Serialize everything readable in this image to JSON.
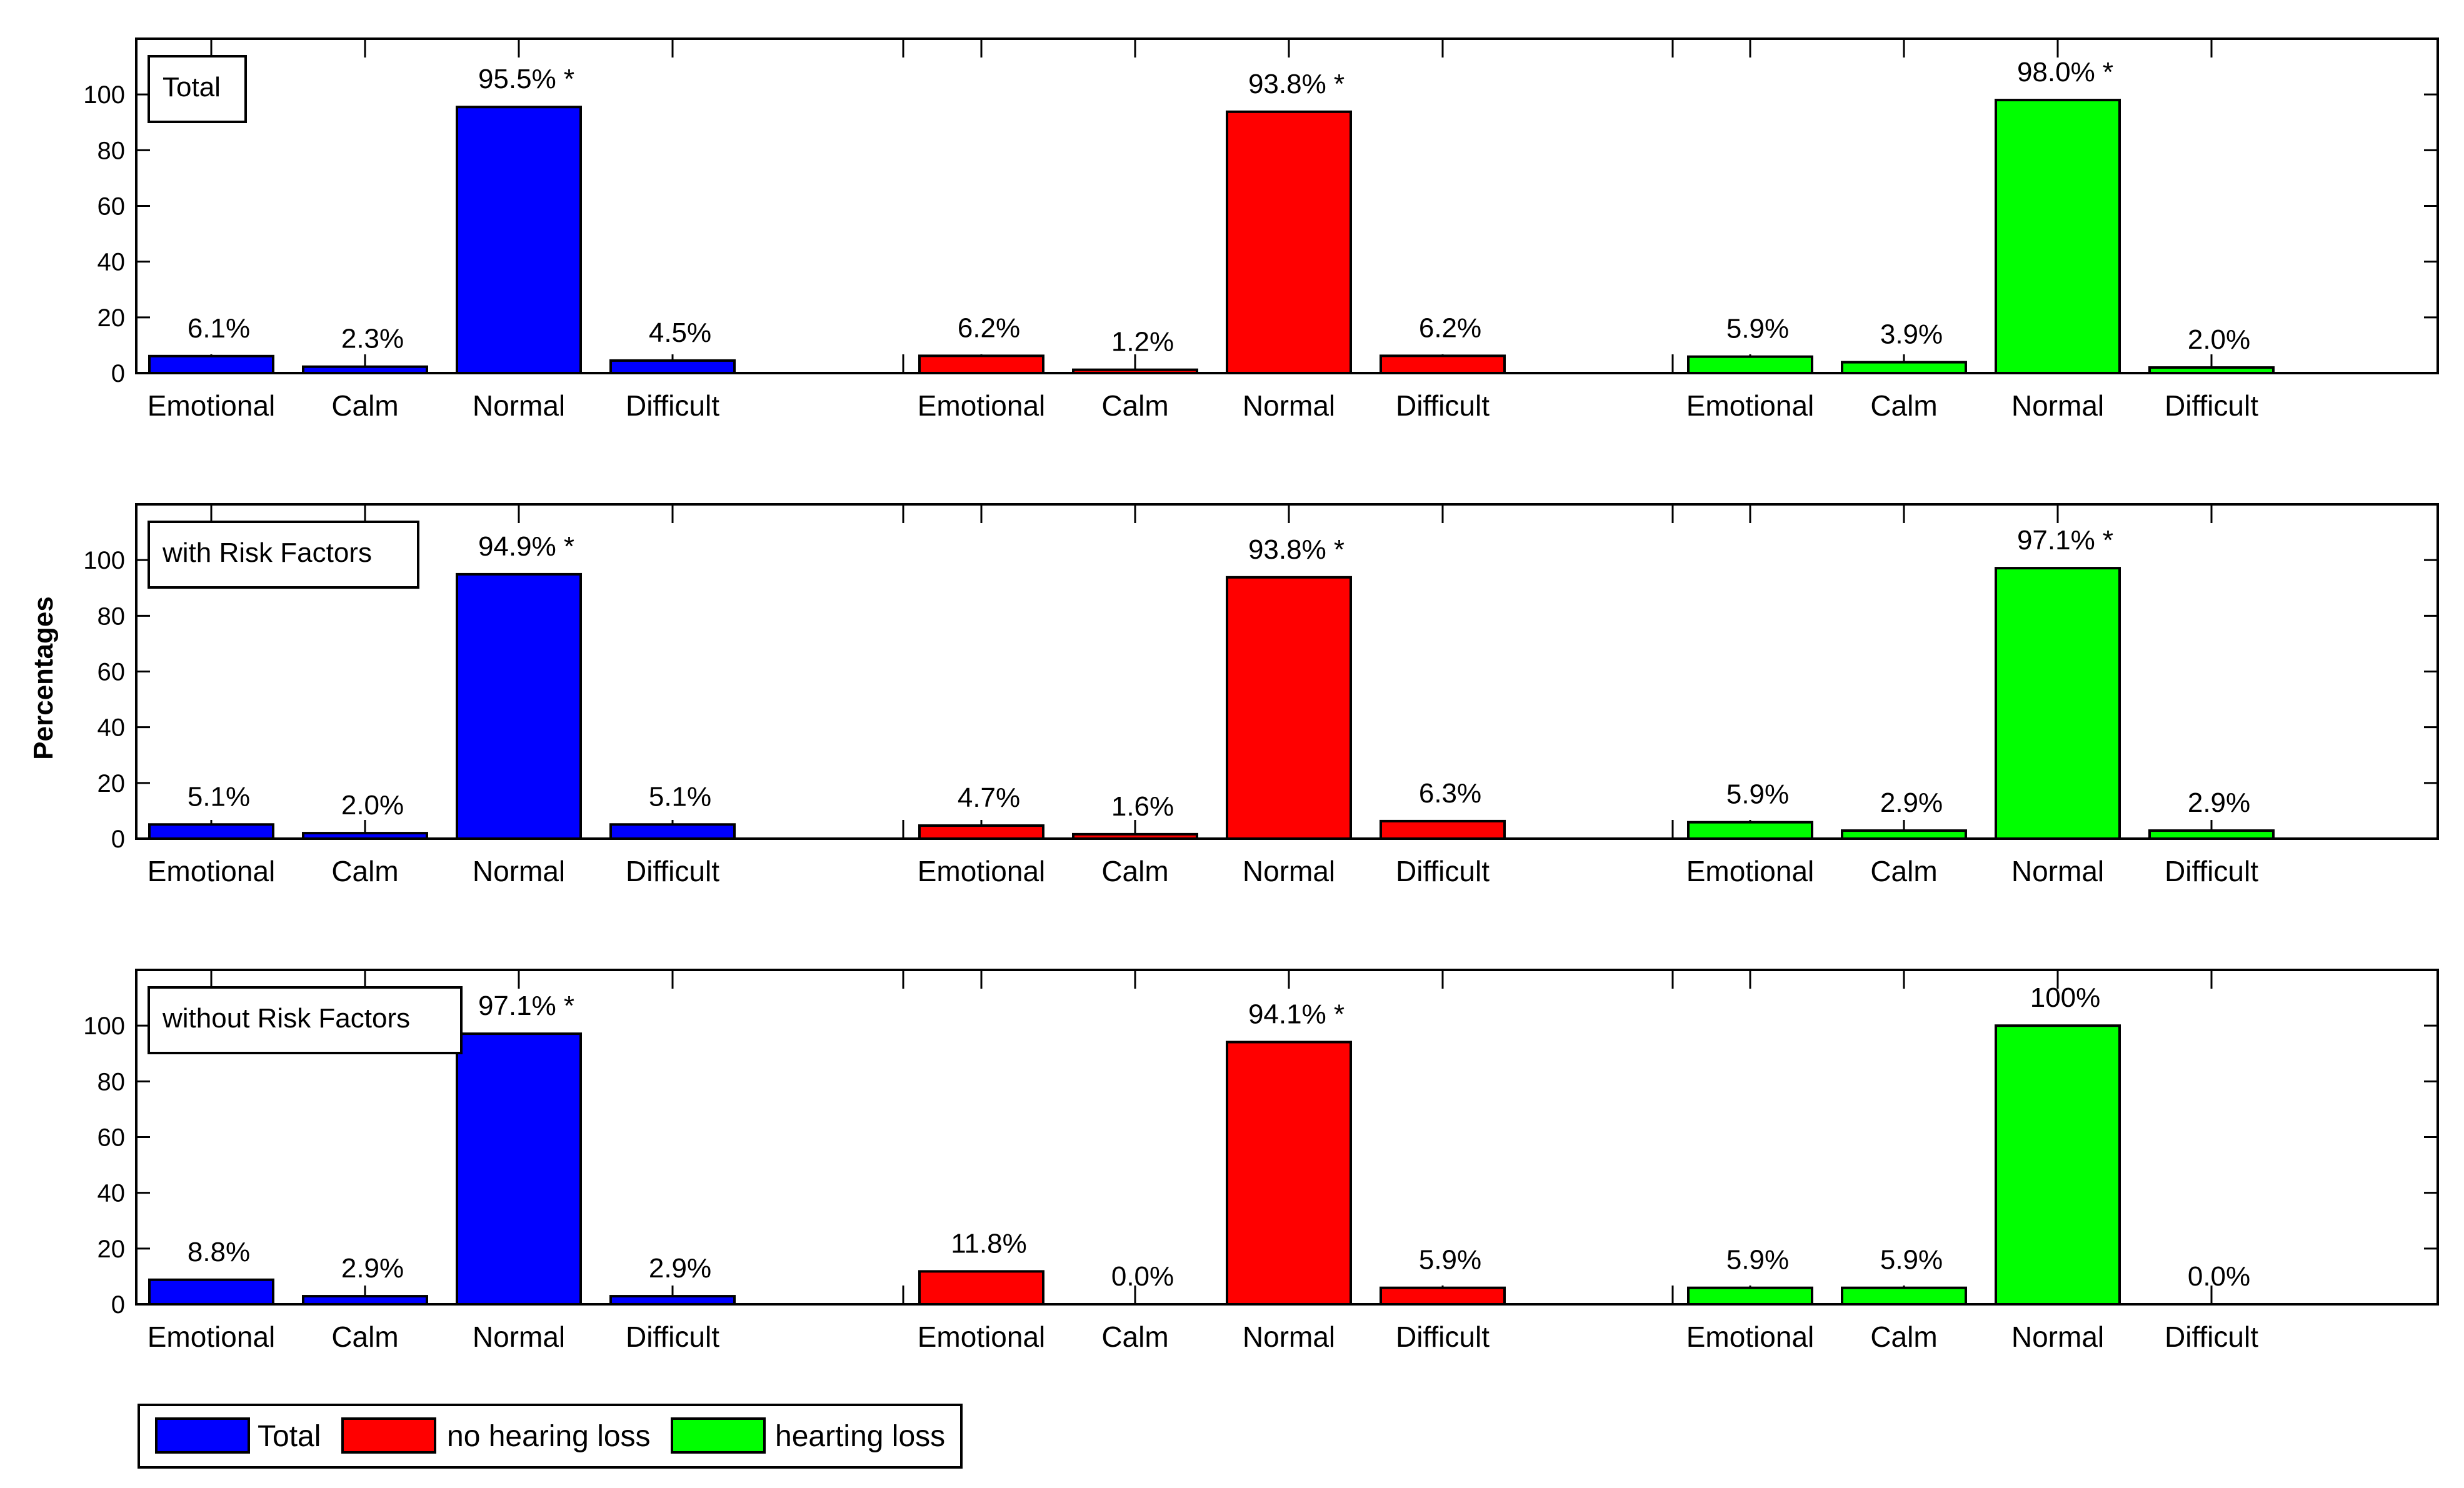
{
  "chart_data": {
    "type": "bar",
    "ylabel": "Percentages",
    "ylim": [
      0,
      120
    ],
    "yticks": [
      0,
      20,
      40,
      60,
      80,
      100
    ],
    "categories": [
      "Emotional",
      "Calm",
      "Normal",
      "Difficult"
    ],
    "groups": [
      {
        "name": "Total",
        "color": "#0000ff"
      },
      {
        "name": "no hearing loss",
        "color": "#ff0000"
      },
      {
        "name": "hearting loss",
        "color": "#00ff00"
      }
    ],
    "panels": [
      {
        "title": "Total",
        "series": [
          {
            "name": "Total",
            "values": [
              6.1,
              2.3,
              95.5,
              4.5
            ],
            "labels": [
              "6.1%",
              "2.3%",
              "95.5% *",
              "4.5%"
            ]
          },
          {
            "name": "no hearing loss",
            "values": [
              6.2,
              1.2,
              93.8,
              6.2
            ],
            "labels": [
              "6.2%",
              "1.2%",
              "93.8% *",
              "6.2%"
            ]
          },
          {
            "name": "hearting loss",
            "values": [
              5.9,
              3.9,
              98.0,
              2.0
            ],
            "labels": [
              "5.9%",
              "3.9%",
              "98.0% *",
              "2.0%"
            ]
          }
        ]
      },
      {
        "title": "with Risk Factors",
        "series": [
          {
            "name": "Total",
            "values": [
              5.1,
              2.0,
              94.9,
              5.1
            ],
            "labels": [
              "5.1%",
              "2.0%",
              "94.9% *",
              "5.1%"
            ]
          },
          {
            "name": "no hearing loss",
            "values": [
              4.7,
              1.6,
              93.8,
              6.3
            ],
            "labels": [
              "4.7%",
              "1.6%",
              "93.8% *",
              "6.3%"
            ]
          },
          {
            "name": "hearting loss",
            "values": [
              5.9,
              2.9,
              97.1,
              2.9
            ],
            "labels": [
              "5.9%",
              "2.9%",
              "97.1% *",
              "2.9%"
            ]
          }
        ]
      },
      {
        "title": "without Risk Factors",
        "series": [
          {
            "name": "Total",
            "values": [
              8.8,
              2.9,
              97.1,
              2.9
            ],
            "labels": [
              "8.8%",
              "2.9%",
              "97.1% *",
              "2.9%"
            ]
          },
          {
            "name": "no hearing loss",
            "values": [
              11.8,
              0.0,
              94.1,
              5.9
            ],
            "labels": [
              "11.8%",
              "0.0%",
              "94.1% *",
              "5.9%"
            ]
          },
          {
            "name": "hearting loss",
            "values": [
              5.9,
              5.9,
              100,
              0.0
            ],
            "labels": [
              "5.9%",
              "5.9%",
              "100%",
              "0.0%"
            ]
          }
        ]
      }
    ],
    "legend": {
      "position": "bottom-left",
      "entries": [
        "Total",
        "no hearing loss",
        "hearting loss"
      ]
    }
  }
}
